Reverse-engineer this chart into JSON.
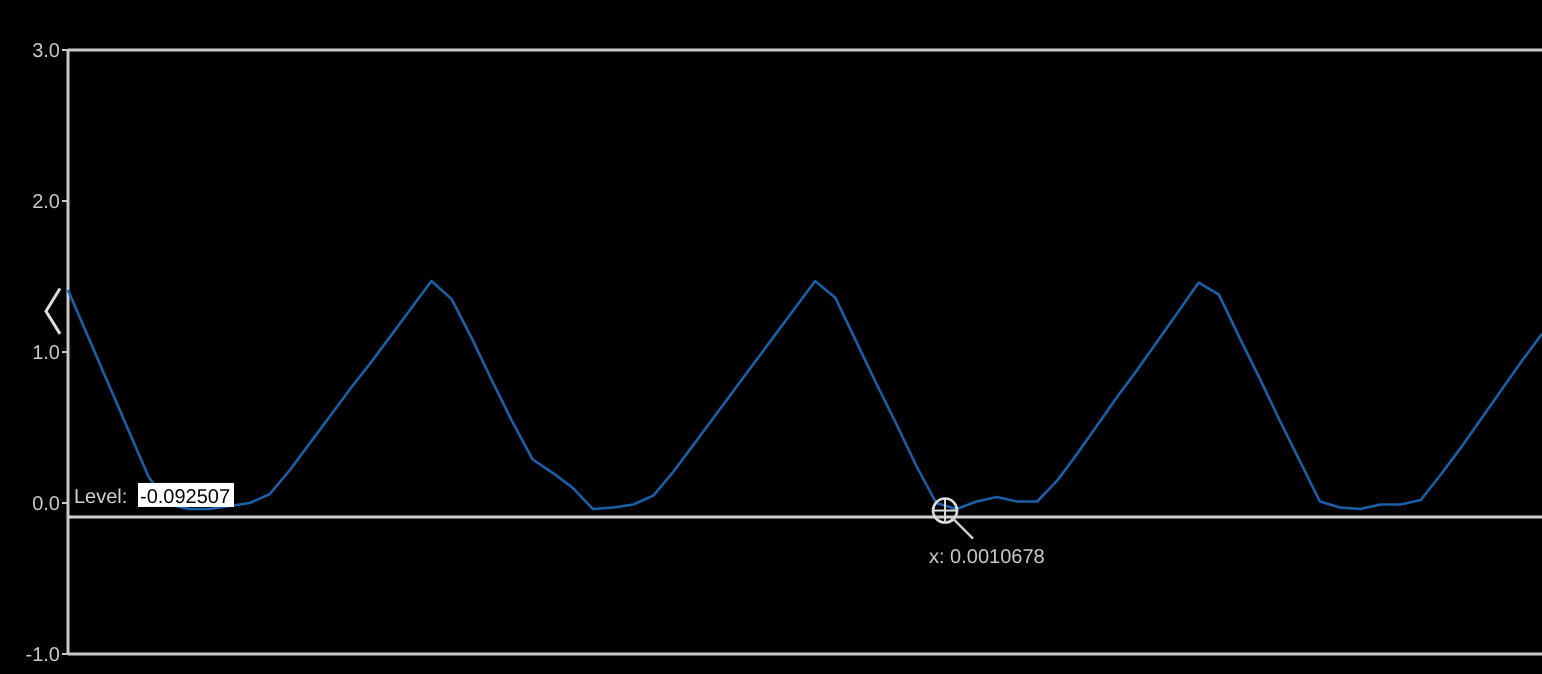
{
  "chart_data": {
    "type": "line",
    "categories": [
      null,
      null,
      null,
      null,
      null,
      null,
      null,
      null,
      null,
      null,
      null,
      null,
      null,
      null,
      null,
      null,
      null,
      null,
      null,
      null,
      null,
      null,
      null,
      null,
      null,
      null,
      null,
      null,
      null,
      null,
      null,
      null,
      null,
      null,
      null,
      null,
      null,
      null,
      null,
      null,
      null,
      null,
      null,
      null,
      null,
      null,
      null,
      null,
      null,
      null,
      null,
      null,
      null,
      null,
      null,
      null,
      null,
      null,
      null,
      null,
      null,
      null,
      null,
      null,
      null,
      null,
      null,
      null,
      null,
      null,
      null,
      null,
      null,
      null
    ],
    "series": [
      {
        "color": "#1a5fa8",
        "values": [
          1.41,
          1.1,
          0.79,
          0.48,
          0.17,
          -0.01,
          -0.04,
          -0.04,
          -0.02,
          0.0,
          0.06,
          0.22,
          0.4,
          0.58,
          0.76,
          0.93,
          1.11,
          1.29,
          1.47,
          1.35,
          1.09,
          0.81,
          0.54,
          0.29,
          0.2,
          0.1,
          -0.04,
          -0.03,
          -0.01,
          0.05,
          0.21,
          0.39,
          0.57,
          0.75,
          0.93,
          1.11,
          1.29,
          1.47,
          1.36,
          1.08,
          0.8,
          0.53,
          0.25,
          0.0,
          -0.04,
          0.01,
          0.04,
          0.01,
          0.01,
          0.15,
          0.33,
          0.52,
          0.71,
          0.89,
          1.08,
          1.27,
          1.46,
          1.38,
          1.1,
          0.83,
          0.55,
          0.28,
          0.01,
          -0.03,
          -0.04,
          -0.01,
          -0.01,
          0.02,
          0.19,
          0.37,
          0.56,
          0.75,
          0.94,
          1.12
        ]
      }
    ],
    "ylim": [
      -1.0,
      3.0
    ],
    "yticks": [
      {
        "value": -1,
        "label": "-1.0"
      },
      {
        "value": 0,
        "label": "0.0"
      },
      {
        "value": 1,
        "label": "1.0"
      },
      {
        "value": 2,
        "label": "2.0"
      },
      {
        "value": 3,
        "label": "3.0"
      }
    ],
    "tick_labels": "y",
    "grid": false,
    "marker": "none",
    "line_style": "solid",
    "ref_lines": [
      {
        "axis": "y",
        "value": -0.092507,
        "label": "Level: -0.092507",
        "color": "#d0d0d0",
        "line_style": "solid"
      }
    ],
    "annotations": [
      "x: 0.0010678"
    ]
  }
}
